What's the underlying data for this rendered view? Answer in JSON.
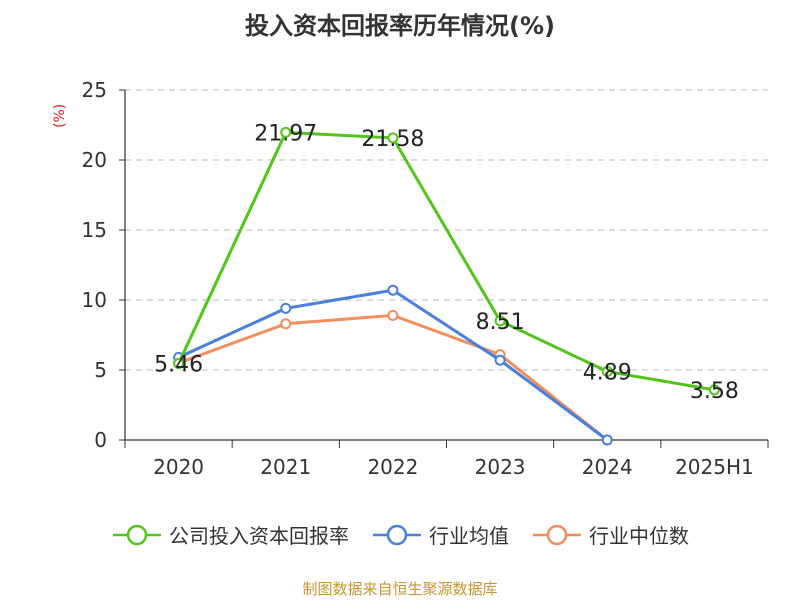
{
  "chart_data": {
    "type": "line",
    "title": "投入资本回报率历年情况(%)",
    "ylabel": "(%)",
    "xlabel": "",
    "categories": [
      "2020",
      "2021",
      "2022",
      "2023",
      "2024",
      "2025H1"
    ],
    "ylim": [
      0,
      25
    ],
    "yticks": [
      0,
      5,
      10,
      15,
      20,
      25
    ],
    "grid": true,
    "legend_position": "bottom",
    "series": [
      {
        "name": "公司投入资本回报率",
        "color": "#52c41a",
        "values": [
          5.46,
          21.97,
          21.58,
          8.51,
          4.89,
          3.58
        ],
        "labels": [
          "5.46",
          "21.97",
          "21.58",
          "8.51",
          "4.89",
          "3.58"
        ]
      },
      {
        "name": "行业均值",
        "color": "#4a7fdc",
        "values": [
          5.9,
          9.4,
          10.7,
          5.7,
          0,
          null
        ],
        "labels": []
      },
      {
        "name": "行业中位数",
        "color": "#f28e5e",
        "values": [
          5.5,
          8.3,
          8.9,
          6.1,
          0,
          null
        ],
        "labels": []
      }
    ]
  },
  "source": "制图数据来自恒生聚源数据库"
}
